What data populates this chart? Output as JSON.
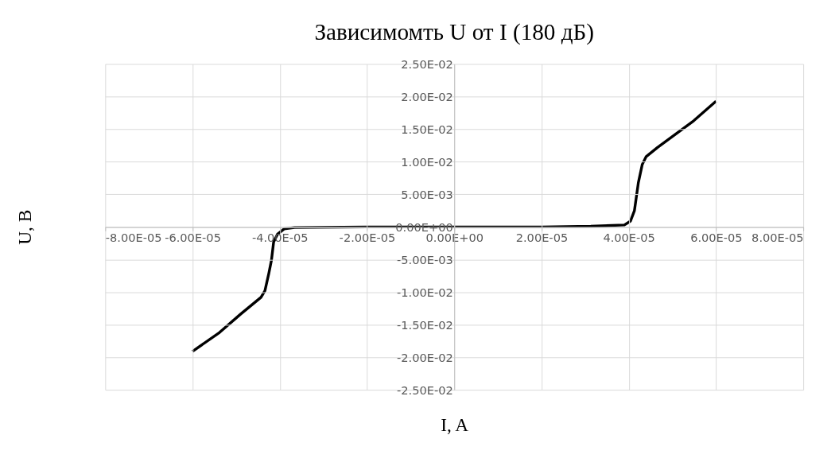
{
  "chart_data": {
    "type": "line",
    "title": "Зависимомть U от I (180 дБ)",
    "xlabel": "I, A",
    "ylabel": "U, B",
    "x": [
      -6e-05,
      -5.38e-05,
      -4.9e-05,
      -4.43e-05,
      -4.34e-05,
      -4.25e-05,
      -4.19e-05,
      -4.14e-05,
      -4.05e-05,
      -3.9e-05,
      -3.66e-05,
      -2e-05,
      0.0,
      2e-05,
      3.13e-05,
      3.9e-05,
      4.04e-05,
      4.13e-05,
      4.22e-05,
      4.31e-05,
      4.4e-05,
      4.66e-05,
      5.49e-05,
      6e-05
    ],
    "series": [
      {
        "color": "#000000",
        "values": [
          -0.0191,
          -0.0162,
          -0.0134,
          -0.0108,
          -0.0098,
          -0.0071,
          -0.0051,
          -0.0023,
          -0.0011,
          -0.0003,
          -0.0001,
          0.0,
          0.0,
          0.0,
          0.0001,
          0.0003,
          0.0009,
          0.0025,
          0.0068,
          0.0096,
          0.0108,
          0.0122,
          0.0163,
          0.0193
        ]
      }
    ],
    "xlim": [
      -8e-05,
      8e-05
    ],
    "xticks": [
      {
        "value": -8e-05,
        "label": "-8.00E-05"
      },
      {
        "value": -6e-05,
        "label": "-6.00E-05"
      },
      {
        "value": -4e-05,
        "label": "-4.00E-05"
      },
      {
        "value": -2e-05,
        "label": "-2.00E-05"
      },
      {
        "value": 0,
        "label": "0.00E+00"
      },
      {
        "value": 2e-05,
        "label": "2.00E-05"
      },
      {
        "value": 4e-05,
        "label": "4.00E-05"
      },
      {
        "value": 6e-05,
        "label": "6.00E-05"
      },
      {
        "value": 8e-05,
        "label": "8.00E-05"
      }
    ],
    "ylim": [
      -0.025,
      0.025
    ],
    "yticks": [
      {
        "value": -0.025,
        "label": "-2.50E-02"
      },
      {
        "value": -0.02,
        "label": "-2.00E-02"
      },
      {
        "value": -0.015,
        "label": "-1.50E-02"
      },
      {
        "value": -0.01,
        "label": "-1.00E-02"
      },
      {
        "value": -0.005,
        "label": "-5.00E-03"
      },
      {
        "value": 0,
        "label": "0.00E+00"
      },
      {
        "value": 0.005,
        "label": "5.00E-03"
      },
      {
        "value": 0.01,
        "label": "1.00E-02"
      },
      {
        "value": 0.015,
        "label": "1.50E-02"
      },
      {
        "value": 0.02,
        "label": "2.00E-02"
      },
      {
        "value": 0.025,
        "label": "2.50E-02"
      }
    ],
    "grid": true,
    "marker": "none",
    "line_style": "solid"
  }
}
